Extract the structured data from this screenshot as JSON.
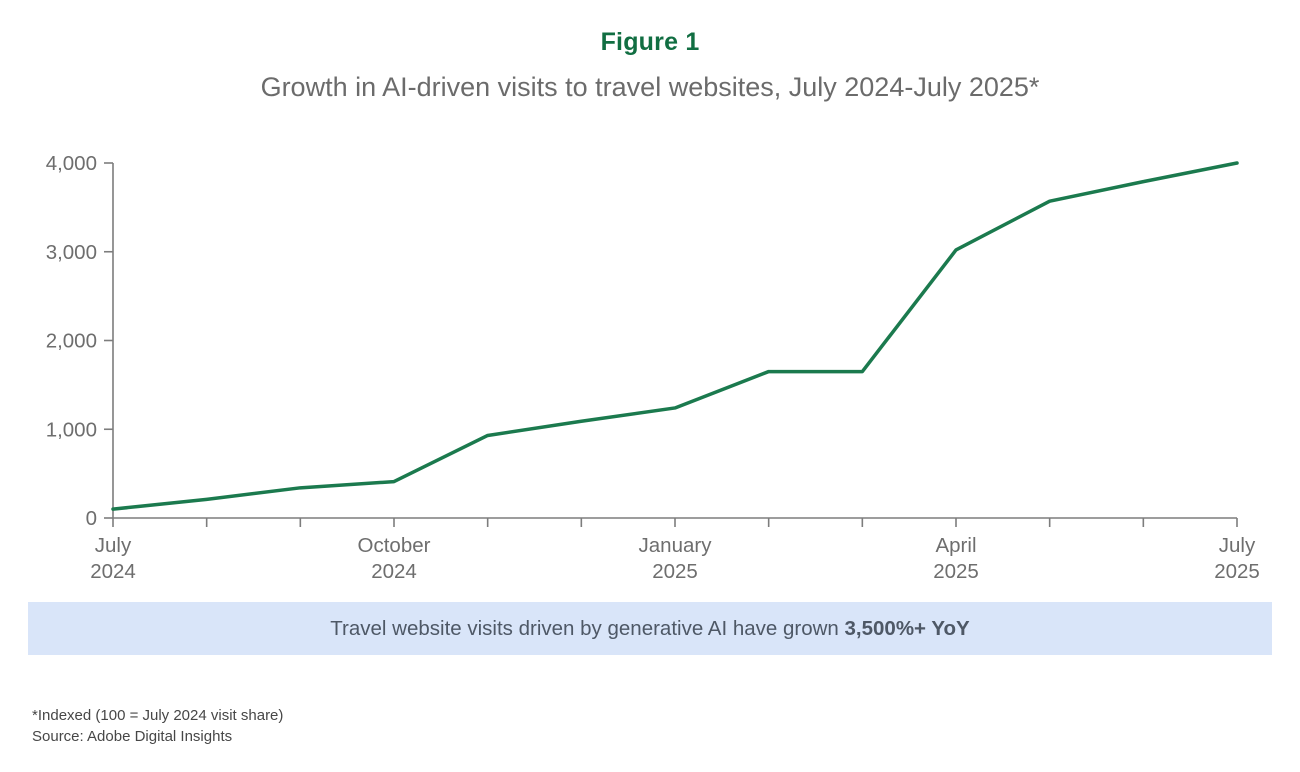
{
  "figure": {
    "label": "Figure 1",
    "title": "Growth in AI-driven visits to travel websites, July 2024-July 2025*"
  },
  "chart_data": {
    "type": "line",
    "title": "Growth in AI-driven visits to travel websites, July 2024-July 2025*",
    "x": [
      "Jul 2024",
      "Aug 2024",
      "Sep 2024",
      "Oct 2024",
      "Nov 2024",
      "Dec 2024",
      "Jan 2025",
      "Feb 2025",
      "Mar 2025",
      "Apr 2025",
      "May 2025",
      "Jun 2025",
      "Jul 2025"
    ],
    "values": [
      100,
      210,
      340,
      410,
      930,
      1090,
      1240,
      1650,
      1650,
      3020,
      3570,
      3790,
      4000
    ],
    "ylim": [
      0,
      4000
    ],
    "yticks": [
      {
        "value": 0,
        "label": "0"
      },
      {
        "value": 1000,
        "label": "1,000"
      },
      {
        "value": 2000,
        "label": "2,000"
      },
      {
        "value": 3000,
        "label": "3,000"
      },
      {
        "value": 4000,
        "label": "4,000"
      }
    ],
    "xticks_major": [
      {
        "index": 0,
        "line1": "July",
        "line2": "2024"
      },
      {
        "index": 3,
        "line1": "October",
        "line2": "2024"
      },
      {
        "index": 6,
        "line1": "January",
        "line2": "2025"
      },
      {
        "index": 9,
        "line1": "April",
        "line2": "2025"
      },
      {
        "index": 12,
        "line1": "July",
        "line2": "2025"
      }
    ],
    "grid": false,
    "legend": "none"
  },
  "banner": {
    "text_regular": "Travel website visits driven by generative AI have grown ",
    "text_bold": "3,500%+ YoY"
  },
  "footnotes": [
    "*Indexed (100 = July 2024 visit share)",
    "Source: Adobe Digital Insights"
  ],
  "colors": {
    "figure_label_green": "#116e42",
    "line_green": "#1b7a4e",
    "axis_gray": "#7d7d7d",
    "tick_label_gray": "#6e6e6e",
    "subtitle_gray": "#6b6b6b",
    "banner_bg": "#d9e5f9",
    "banner_text": "#4e5866",
    "footnote_gray": "#474747"
  }
}
